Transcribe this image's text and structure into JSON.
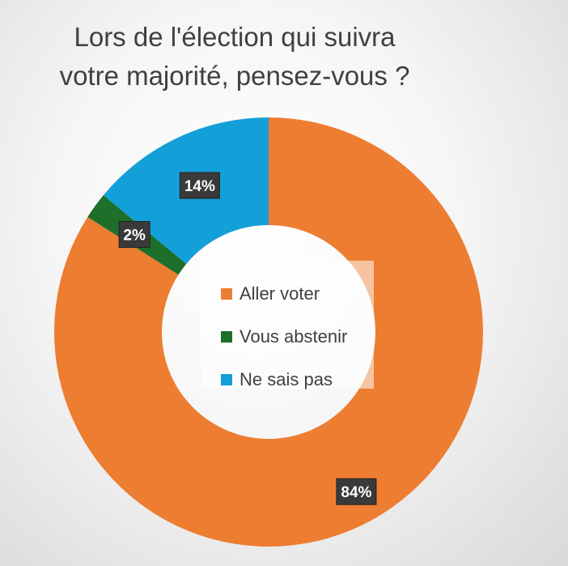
{
  "chart_data": {
    "type": "pie",
    "title_lines": [
      "Lors de l'élection qui suivra",
      "votre majorité, pensez-vous ?"
    ],
    "categories": [
      "Aller voter",
      "Vous abstenir",
      "Ne sais pas"
    ],
    "values": [
      84,
      2,
      14
    ],
    "data_labels": [
      "84%",
      "2%",
      "14%"
    ],
    "colors": [
      "#ED7D31",
      "#1D6F2A",
      "#139FD8"
    ],
    "donut": true,
    "legend_position": "center"
  }
}
